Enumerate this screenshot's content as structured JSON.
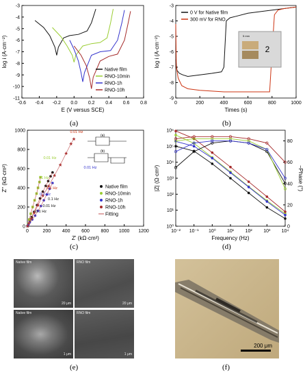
{
  "panels": {
    "a": {
      "label": "(a)",
      "xlabel": "E (V versus SCE)",
      "ylabel": "log i (A·cm⁻²)",
      "xticks": [
        "-0.6",
        "-0.4",
        "-0.2",
        "0.0",
        "0.2",
        "0.4",
        "0.6",
        "0.8"
      ],
      "yticks": [
        "-3",
        "-4",
        "-5",
        "-6",
        "-7",
        "-8",
        "-9",
        "-10",
        "-11"
      ],
      "legend": [
        "Native film",
        "RNO-10min",
        "RNO-1h",
        "RNO-10h"
      ],
      "colors": [
        "#111111",
        "#9acd32",
        "#3333cc",
        "#a52a2a"
      ]
    },
    "b": {
      "label": "(b)",
      "xlabel": "Times (s)",
      "ylabel": "log i (A·cm⁻²)",
      "xticks": [
        "0",
        "200",
        "400",
        "600",
        "800",
        "1000"
      ],
      "yticks": [
        "-3",
        "-4",
        "-5",
        "-6",
        "-7",
        "-8",
        "-9"
      ],
      "legend": [
        "0 V for Native film",
        "300 mV for RNO"
      ],
      "inset_label": "2",
      "inset_scale": "5 mm"
    },
    "c": {
      "label": "(c)",
      "xlabel": "Z' (kΩ·cm²)",
      "ylabel": "Z'' (kΩ·cm²)",
      "xticks": [
        "0",
        "200",
        "400",
        "600",
        "800",
        "1000",
        "1200"
      ],
      "yticks": [
        "0",
        "200",
        "400",
        "600",
        "800",
        "1000"
      ],
      "legend": [
        "Native film",
        "RNO-10min",
        "RNO-1h",
        "RNO-10h",
        "Fitting"
      ],
      "annotations": [
        "0.01 Hz",
        "0.01 Hz",
        "0.01 Hz",
        "0.1 Hz",
        "0.1 Hz",
        "0.1 Hz",
        "0.01 Hz",
        "0.1 Hz",
        "1 Hz"
      ],
      "circuit_labels": [
        "(a)",
        "(b)"
      ]
    },
    "d": {
      "label": "(d)",
      "xlabel": "Frequency (Hz)",
      "ylabel": "|Z| (Ω·cm²)",
      "ylabel2": "−Phase (°)",
      "xticks": [
        "10⁻²",
        "10⁻¹",
        "10⁰",
        "10¹",
        "10²",
        "10³",
        "10⁴"
      ],
      "yticks": [
        "10⁰",
        "10¹",
        "10²",
        "10³",
        "10⁴",
        "10⁵",
        "10⁶"
      ],
      "yticks2": [
        "0",
        "20",
        "40",
        "60",
        "80"
      ]
    },
    "e": {
      "label": "(e)",
      "captions": [
        "Native film",
        "RNO film",
        "Native film",
        "RNO film"
      ],
      "scales": [
        "20 μm",
        "20 μm",
        "1 μm",
        "1 μm"
      ]
    },
    "f": {
      "label": "(f)",
      "scale": "200 μm"
    }
  },
  "chart_data": [
    {
      "type": "line",
      "title": "",
      "xlabel": "E (V versus SCE)",
      "ylabel": "log i (A·cm⁻²)",
      "xlim": [
        -0.6,
        0.8
      ],
      "ylim": [
        -11,
        -3
      ],
      "series": [
        {
          "name": "Native film",
          "x": [
            -0.45,
            -0.35,
            -0.28,
            -0.22,
            -0.2,
            -0.18,
            -0.12,
            -0.05,
            0.05,
            0.15,
            0.2,
            0.25
          ],
          "y": [
            -4.3,
            -4.9,
            -5.6,
            -6.6,
            -7.3,
            -6.6,
            -5.8,
            -5.6,
            -5.5,
            -5.2,
            -4.5,
            -3.3
          ]
        },
        {
          "name": "RNO-10min",
          "x": [
            -0.25,
            -0.15,
            -0.08,
            -0.02,
            0.0,
            0.02,
            0.1,
            0.2,
            0.3,
            0.38,
            0.42,
            0.45
          ],
          "y": [
            -4.9,
            -5.7,
            -6.5,
            -7.3,
            -7.9,
            -7.3,
            -6.5,
            -6.3,
            -6.2,
            -5.8,
            -4.5,
            -3.3
          ]
        },
        {
          "name": "RNO-1h",
          "x": [
            -0.05,
            0.0,
            0.05,
            0.08,
            0.1,
            0.12,
            0.2,
            0.3,
            0.42,
            0.5,
            0.55,
            0.58
          ],
          "y": [
            -6.0,
            -6.8,
            -7.8,
            -8.8,
            -9.6,
            -8.8,
            -7.3,
            -7.0,
            -6.9,
            -6.0,
            -4.5,
            -3.4
          ]
        },
        {
          "name": "RNO-10h",
          "x": [
            0.0,
            0.08,
            0.14,
            0.18,
            0.2,
            0.22,
            0.3,
            0.4,
            0.5,
            0.58,
            0.62,
            0.65
          ],
          "y": [
            -6.5,
            -7.3,
            -8.2,
            -9.3,
            -10.2,
            -9.2,
            -7.8,
            -7.4,
            -7.2,
            -6.0,
            -4.6,
            -3.5
          ]
        }
      ]
    },
    {
      "type": "line",
      "title": "",
      "xlabel": "Times (s)",
      "ylabel": "log i (A·cm⁻²)",
      "xlim": [
        0,
        1000
      ],
      "ylim": [
        -9,
        -3
      ],
      "series": [
        {
          "name": "0 V for Native film",
          "x": [
            0,
            10,
            30,
            60,
            100,
            200,
            300,
            380,
            400,
            420,
            450,
            500,
            600,
            700,
            800,
            900,
            1000
          ],
          "y": [
            -6.5,
            -7.2,
            -7.4,
            -7.5,
            -7.6,
            -7.5,
            -7.4,
            -7.3,
            -7.0,
            -4.0,
            -3.8,
            -3.7,
            -3.5,
            -3.4,
            -3.3,
            -3.2,
            -3.1
          ]
        },
        {
          "name": "300 mV for RNO",
          "x": [
            0,
            5,
            20,
            50,
            100,
            200,
            300,
            400,
            500,
            600,
            700,
            780,
            800,
            820,
            850,
            900,
            1000
          ],
          "y": [
            -4.2,
            -7.0,
            -7.7,
            -8.2,
            -8.4,
            -8.5,
            -8.55,
            -8.6,
            -8.6,
            -8.6,
            -8.6,
            -8.6,
            -6.0,
            -3.6,
            -3.3,
            -3.2,
            -3.1
          ]
        }
      ]
    },
    {
      "type": "scatter",
      "title": "",
      "xlabel": "Z' (kΩ·cm²)",
      "ylabel": "Z'' (kΩ·cm²)",
      "xlim": [
        0,
        1200
      ],
      "ylim": [
        0,
        1000
      ],
      "series": [
        {
          "name": "Native film",
          "x": [
            2,
            10,
            25,
            45,
            70,
            100,
            130,
            160,
            190,
            215,
            240,
            260
          ],
          "y": [
            2,
            20,
            50,
            95,
            150,
            220,
            290,
            360,
            420,
            470,
            520,
            560
          ]
        },
        {
          "name": "RNO-10min",
          "x": [
            2,
            8,
            20,
            35,
            55,
            75,
            95,
            110,
            125,
            135
          ],
          "y": [
            2,
            25,
            70,
            130,
            200,
            270,
            340,
            400,
            460,
            510
          ]
        },
        {
          "name": "RNO-1h",
          "x": [
            2,
            10,
            25,
            50,
            80,
            110,
            140,
            170,
            200,
            230,
            260
          ],
          "y": [
            2,
            18,
            40,
            70,
            110,
            160,
            210,
            270,
            330,
            390,
            450
          ]
        },
        {
          "name": "RNO-10h",
          "x": [
            2,
            15,
            40,
            70,
            110,
            160,
            220,
            280,
            340,
            400,
            450,
            480
          ],
          "y": [
            2,
            30,
            80,
            140,
            220,
            320,
            420,
            530,
            640,
            760,
            860,
            910
          ]
        }
      ]
    },
    {
      "type": "scatter",
      "title": "",
      "xlabel": "Frequency (Hz)",
      "ylabel": "|Z| (Ω·cm²)",
      "xlim": [
        0.01,
        10000
      ],
      "ylim": [
        1,
        1000000
      ],
      "series": [
        {
          "name": "Native film |Z|",
          "x": [
            0.01,
            0.1,
            1,
            10,
            100,
            1000,
            10000
          ],
          "y": [
            100000,
            50000,
            8000,
            1000,
            120,
            15,
            3
          ]
        },
        {
          "name": "RNO-10min |Z|",
          "x": [
            0.01,
            0.1,
            1,
            10,
            100,
            1000,
            10000
          ],
          "y": [
            500000,
            150000,
            20000,
            2500,
            300,
            40,
            6
          ]
        },
        {
          "name": "RNO-1h |Z|",
          "x": [
            0.01,
            0.1,
            1,
            10,
            100,
            1000,
            10000
          ],
          "y": [
            200000,
            100000,
            18000,
            2200,
            280,
            35,
            5
          ]
        },
        {
          "name": "RNO-10h |Z|",
          "x": [
            0.01,
            0.1,
            1,
            10,
            100,
            1000,
            10000
          ],
          "y": [
            900000,
            300000,
            40000,
            5000,
            600,
            70,
            8
          ]
        },
        {
          "name": "Native film phase",
          "x": [
            0.01,
            0.1,
            1,
            10,
            100,
            1000,
            10000
          ],
          "y": [
            55,
            70,
            78,
            80,
            78,
            70,
            40
          ]
        },
        {
          "name": "RNO-10min phase",
          "x": [
            0.01,
            0.1,
            1,
            10,
            100,
            1000,
            10000
          ],
          "y": [
            80,
            82,
            82,
            82,
            80,
            72,
            35
          ]
        },
        {
          "name": "RNO-1h phase",
          "x": [
            0.01,
            0.1,
            1,
            10,
            100,
            1000,
            10000
          ],
          "y": [
            70,
            78,
            80,
            80,
            78,
            72,
            45
          ]
        },
        {
          "name": "RNO-10h phase",
          "x": [
            0.01,
            0.1,
            1,
            10,
            100,
            1000,
            10000
          ],
          "y": [
            82,
            84,
            84,
            84,
            82,
            78,
            60
          ]
        }
      ]
    }
  ]
}
